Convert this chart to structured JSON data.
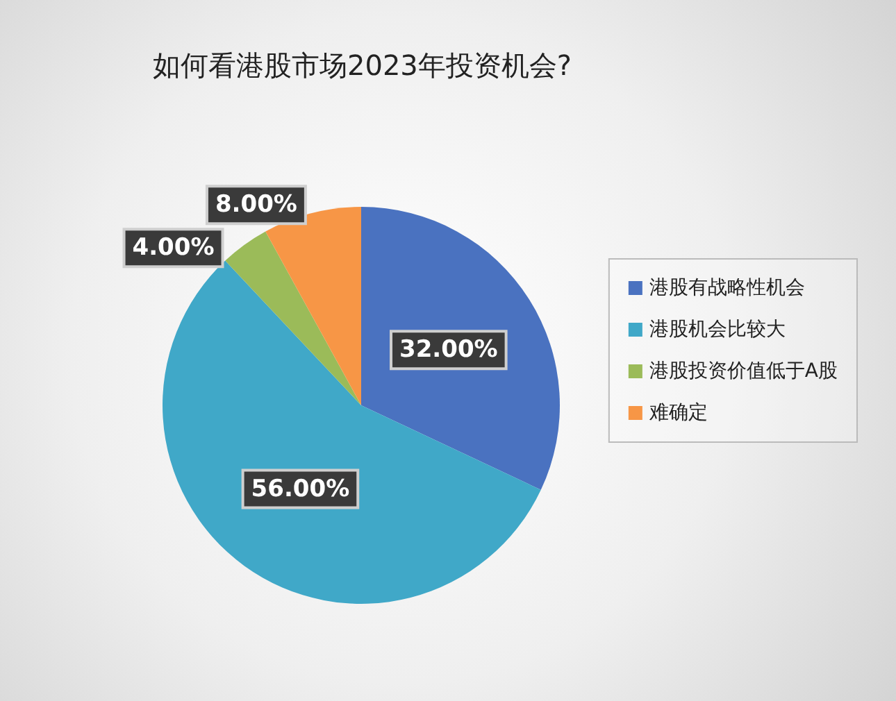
{
  "chart_data": {
    "type": "pie",
    "title": "如何看港股市场2023年投资机会?",
    "categories": [
      "港股有战略性机会",
      "港股机会比较大",
      "港股投资价值低于A股",
      "难确定"
    ],
    "values": [
      32,
      56,
      4,
      8
    ],
    "colors": [
      "#4a72c0",
      "#40a8c8",
      "#9bbb59",
      "#f79646"
    ],
    "value_labels": [
      "32.00%",
      "56.00%",
      "4.00%",
      "8.00%"
    ],
    "legend": "right"
  }
}
